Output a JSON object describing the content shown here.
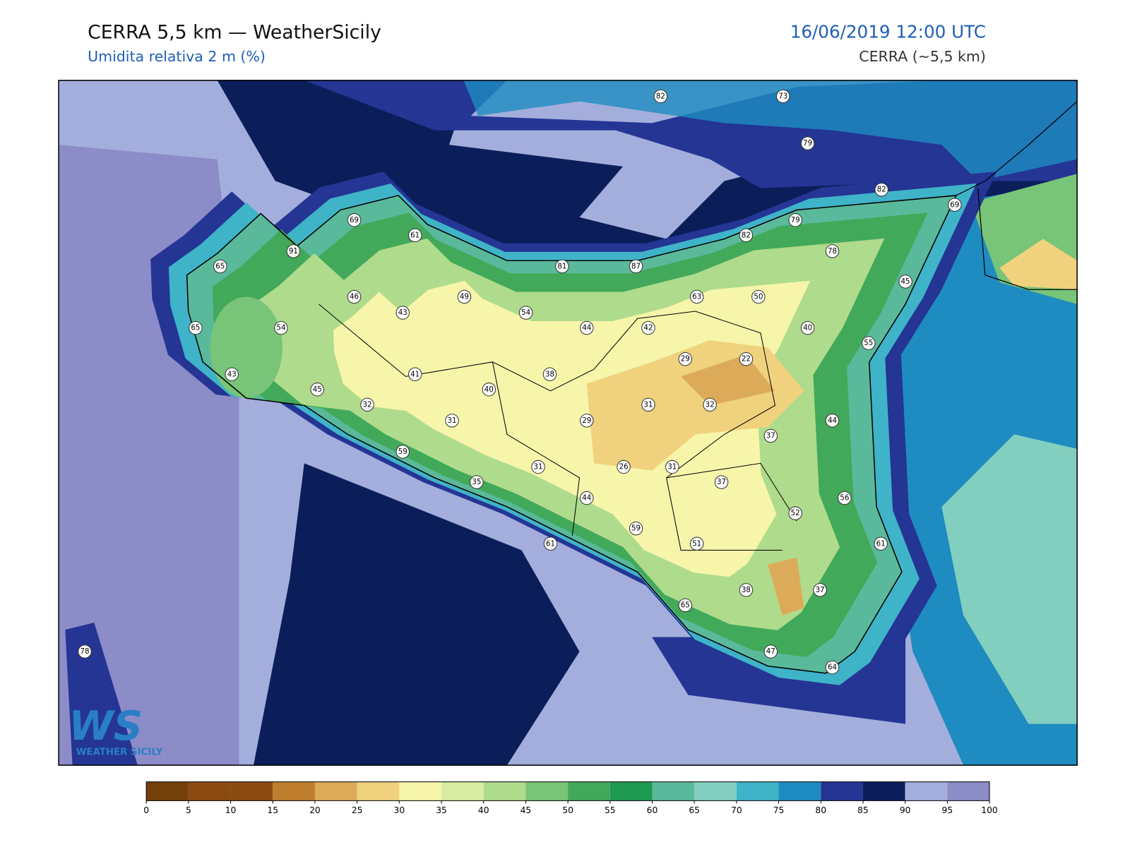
{
  "header": {
    "title": "CERRA 5,5 km — WeatherSicily",
    "subtitle": "Umidita relativa 2 m (%)",
    "datetime": "16/06/2019 12:00 UTC",
    "model": "CERRA (~5,5 km)"
  },
  "stations": {
    "values": [
      82,
      73,
      79,
      82,
      69,
      69,
      79,
      61,
      82,
      78,
      91,
      65,
      81,
      87,
      45,
      46,
      49,
      63,
      50,
      43,
      54,
      54,
      65,
      44,
      42,
      40,
      55,
      29,
      22,
      43,
      41,
      38,
      40,
      45,
      32,
      31,
      32,
      31,
      29,
      44,
      37,
      59,
      31,
      26,
      31,
      35,
      37,
      44,
      56,
      52,
      59,
      61,
      51,
      61,
      38,
      37,
      65,
      47,
      64,
      78
    ]
  },
  "colorbar": {
    "ticks": [
      0,
      5,
      10,
      15,
      20,
      25,
      30,
      35,
      40,
      45,
      50,
      55,
      60,
      65,
      70,
      75,
      80,
      85,
      90,
      95,
      100
    ],
    "colors": [
      "#74400a",
      "#8a4a10",
      "#8a4a10",
      "#bf7e2e",
      "#dcab5a",
      "#f0d27e",
      "#f6f5aa",
      "#d8eca2",
      "#afdb8c",
      "#78c478",
      "#42a95a",
      "#1f9a52",
      "#5ab99b",
      "#82cfbf",
      "#3fb3c8",
      "#1e8cc0",
      "#243594",
      "#0b1e5a",
      "#a4aedc",
      "#8c8cc8"
    ]
  },
  "logo": {
    "mark": "WS",
    "text": "WEATHER SICILY"
  }
}
